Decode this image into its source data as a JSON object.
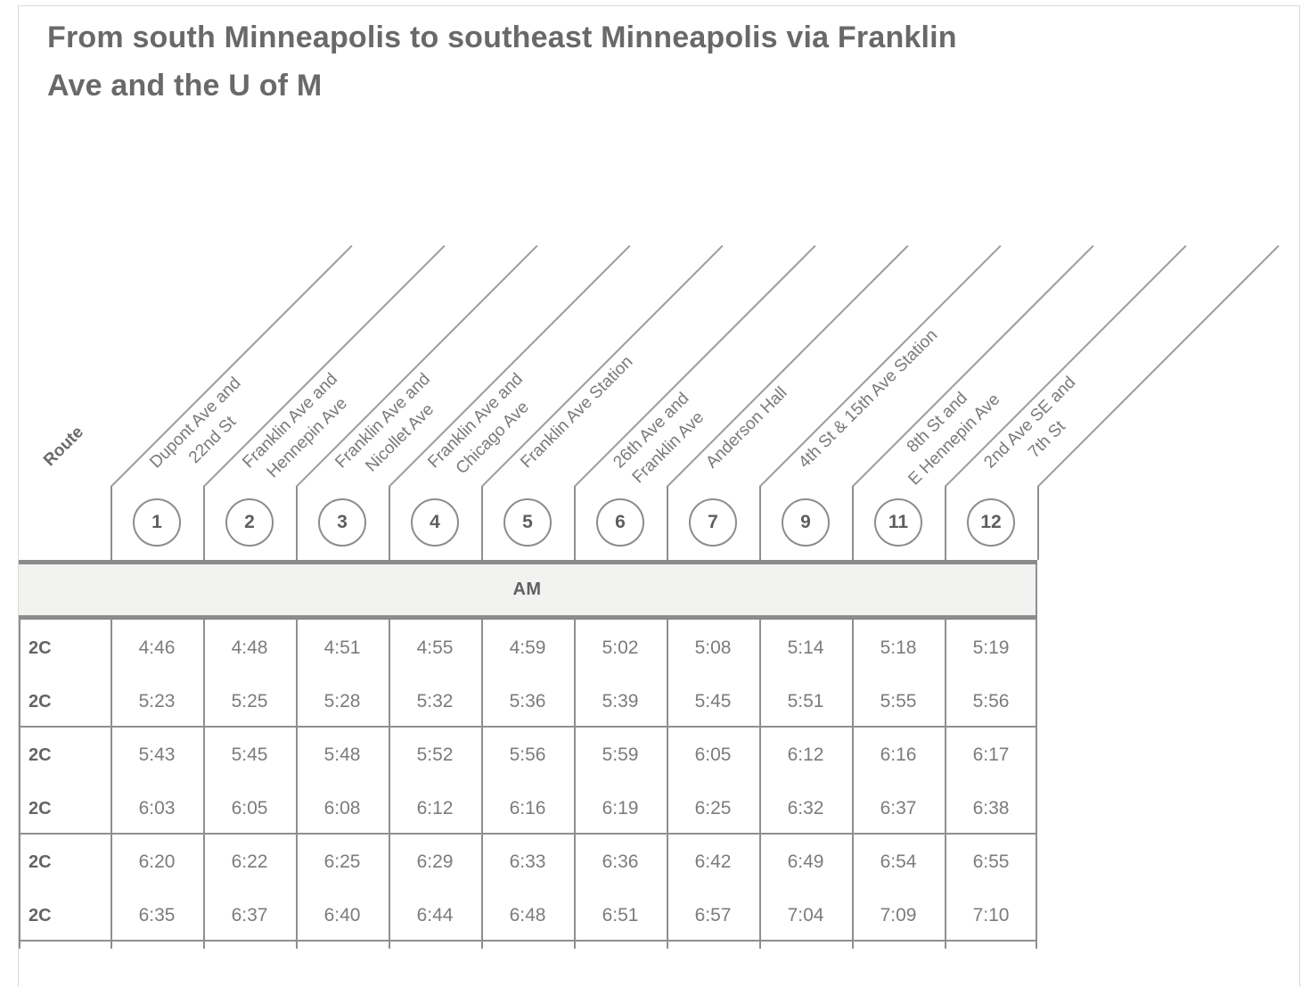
{
  "title_lines": [
    "From south Minneapolis to southeast Minneapolis via Franklin",
    "Ave and the U of M"
  ],
  "header": {
    "route_label": "Route",
    "stops": [
      {
        "number": "1",
        "name": "Dupont Ave and 22nd St",
        "lines": [
          "Dupont Ave and",
          "22nd St"
        ]
      },
      {
        "number": "2",
        "name": "Franklin Ave and Hennepin Ave",
        "lines": [
          "Franklin Ave and",
          "Hennepin Ave"
        ]
      },
      {
        "number": "3",
        "name": "Franklin Ave and Nicollet Ave",
        "lines": [
          "Franklin Ave and",
          "Nicollet Ave"
        ]
      },
      {
        "number": "4",
        "name": "Franklin Ave and Chicago Ave",
        "lines": [
          "Franklin Ave and",
          "Chicago Ave"
        ]
      },
      {
        "number": "5",
        "name": "Franklin Ave Station",
        "lines": [
          "Franklin Ave Station"
        ]
      },
      {
        "number": "6",
        "name": "26th Ave and Franklin Ave",
        "lines": [
          "26th Ave and",
          "Franklin Ave"
        ]
      },
      {
        "number": "7",
        "name": "Anderson Hall",
        "lines": [
          "Anderson Hall"
        ]
      },
      {
        "number": "9",
        "name": "4th St & 15th Ave Station",
        "lines": [
          "4th St & 15th Ave Station"
        ]
      },
      {
        "number": "11",
        "name": "8th St and E Hennepin Ave",
        "lines": [
          "8th St and",
          "E Hennepin Ave"
        ]
      },
      {
        "number": "12",
        "name": "2nd Ave SE and 7th St",
        "lines": [
          "2nd Ave SE and",
          "7th St"
        ]
      }
    ]
  },
  "period": {
    "label": "AM"
  },
  "trips": [
    {
      "route": "2C",
      "times": [
        "4:46",
        "4:48",
        "4:51",
        "4:55",
        "4:59",
        "5:02",
        "5:08",
        "5:14",
        "5:18",
        "5:19"
      ]
    },
    {
      "route": "2C",
      "times": [
        "5:23",
        "5:25",
        "5:28",
        "5:32",
        "5:36",
        "5:39",
        "5:45",
        "5:51",
        "5:55",
        "5:56"
      ]
    },
    {
      "route": "2C",
      "times": [
        "5:43",
        "5:45",
        "5:48",
        "5:52",
        "5:56",
        "5:59",
        "6:05",
        "6:12",
        "6:16",
        "6:17"
      ]
    },
    {
      "route": "2C",
      "times": [
        "6:03",
        "6:05",
        "6:08",
        "6:12",
        "6:16",
        "6:19",
        "6:25",
        "6:32",
        "6:37",
        "6:38"
      ]
    },
    {
      "route": "2C",
      "times": [
        "6:20",
        "6:22",
        "6:25",
        "6:29",
        "6:33",
        "6:36",
        "6:42",
        "6:49",
        "6:54",
        "6:55"
      ]
    },
    {
      "route": "2C",
      "times": [
        "6:35",
        "6:37",
        "6:40",
        "6:44",
        "6:48",
        "6:51",
        "6:57",
        "7:04",
        "7:09",
        "7:10"
      ]
    }
  ],
  "row_groups": [
    [
      0,
      1
    ],
    [
      2,
      3
    ],
    [
      4,
      5
    ]
  ],
  "colors": {
    "thick_bar": "#8b8b8b",
    "grid_line": "#8f8f8f",
    "diagonal_line": "#9c9c9c",
    "am_band_bg": "#f2f2f0",
    "dark_text": "#606163",
    "light_text": "#7b7c7f",
    "card_border": "#dadada"
  }
}
